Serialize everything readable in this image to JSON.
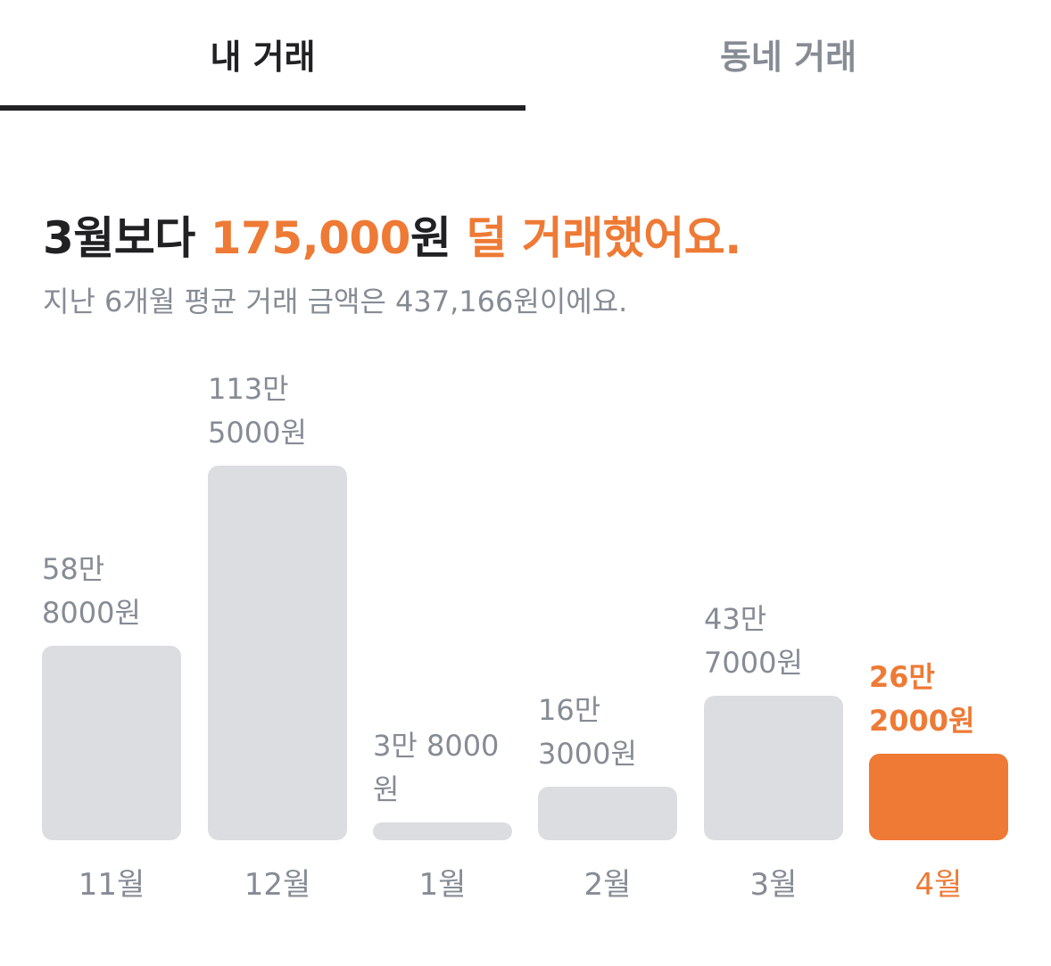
{
  "tabs": [
    {
      "label": "내 거래",
      "active": true
    },
    {
      "label": "동네 거래",
      "active": false
    }
  ],
  "summary": {
    "headline_prefix": "3월보다 ",
    "headline_amount": "175,000",
    "headline_unit": "원 ",
    "headline_suffix": "덜 거래했어요.",
    "subline": "지난 6개월 평균 거래 금액은 437,166원이에요."
  },
  "colors": {
    "accent": "#ee7a35",
    "bar": "#dcdde1",
    "text_primary": "#212124",
    "text_secondary": "#868b94"
  },
  "chart_data": {
    "type": "bar",
    "categories": [
      "11월",
      "12월",
      "1월",
      "2월",
      "3월",
      "4월"
    ],
    "values": [
      588000,
      1135000,
      38000,
      163000,
      437000,
      262000
    ],
    "value_labels_line1": [
      "58만",
      "113만",
      "3만 8000",
      "16만",
      "43만",
      "26만"
    ],
    "value_labels_line2": [
      "8000원",
      "5000원",
      "원",
      "3000원",
      "7000원",
      "2000원"
    ],
    "highlight_index": 5
  }
}
